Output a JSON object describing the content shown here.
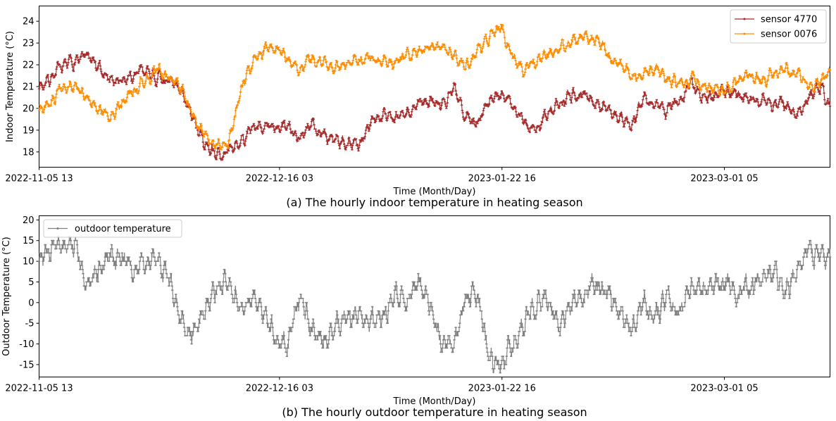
{
  "chart_data": [
    {
      "type": "line",
      "caption": "(a) The hourly indoor temperature in heating season",
      "xlabel": "Time (Month/Day)",
      "ylabel": "Indoor Temperature (°C)",
      "x_range_days": [
        0,
        133.5
      ],
      "x_ticks": [
        {
          "label": "2022-11-05 13",
          "day": 0
        },
        {
          "label": "2022-12-16 03",
          "day": 40.58
        },
        {
          "label": "2023-01-22 16",
          "day": 78.13
        },
        {
          "label": "2023-03-01 05",
          "day": 115.67
        }
      ],
      "ylim": [
        17.3,
        24.7
      ],
      "y_ticks": [
        18,
        19,
        20,
        21,
        22,
        23,
        24
      ],
      "legend_position": "upper-right",
      "series": [
        {
          "name": "sensor 4770",
          "color": "#a52a2a",
          "keyframes_day": [
            0,
            2,
            4,
            6,
            8,
            10,
            12,
            14,
            16,
            18,
            20,
            22,
            24,
            26,
            28,
            30,
            32,
            34,
            36,
            38,
            40,
            42,
            44,
            46,
            48,
            50,
            52,
            54,
            56,
            58,
            60,
            62,
            64,
            66,
            68,
            70,
            72,
            74,
            76,
            78,
            80,
            82,
            84,
            86,
            88,
            90,
            92,
            94,
            96,
            98,
            100,
            102,
            104,
            106,
            108,
            110,
            112,
            114,
            116,
            118,
            120,
            122,
            124,
            126,
            128,
            130,
            132,
            133.5
          ],
          "keyframes_temp": [
            21.0,
            21.4,
            21.9,
            22.2,
            22.4,
            21.8,
            21.4,
            21.2,
            21.5,
            21.8,
            21.4,
            21.1,
            20.9,
            19.5,
            18.3,
            17.9,
            18.0,
            18.5,
            19.0,
            19.2,
            19.1,
            19.1,
            18.7,
            19.2,
            18.9,
            18.6,
            18.4,
            18.3,
            19.4,
            19.8,
            19.6,
            19.7,
            20.2,
            20.4,
            20.3,
            20.9,
            19.6,
            19.4,
            20.4,
            20.8,
            20.1,
            19.3,
            18.9,
            19.9,
            20.2,
            20.5,
            20.7,
            20.3,
            20.0,
            19.6,
            19.2,
            20.5,
            20.2,
            20.0,
            20.3,
            21.2,
            20.4,
            20.6,
            20.8,
            20.6,
            20.5,
            20.4,
            20.2,
            20.1,
            19.8,
            20.5,
            21.0,
            20.1
          ],
          "noise_amplitude": 0.35
        },
        {
          "name": "sensor 0076",
          "color": "#ff8c00",
          "keyframes_day": [
            0,
            2,
            4,
            6,
            8,
            10,
            12,
            14,
            16,
            18,
            20,
            22,
            24,
            26,
            28,
            30,
            32,
            34,
            36,
            38,
            40,
            42,
            44,
            46,
            48,
            50,
            52,
            54,
            56,
            58,
            60,
            62,
            64,
            66,
            68,
            70,
            72,
            74,
            76,
            78,
            80,
            82,
            84,
            86,
            88,
            90,
            92,
            94,
            96,
            98,
            100,
            102,
            104,
            106,
            108,
            110,
            112,
            114,
            116,
            118,
            120,
            122,
            124,
            126,
            128,
            130,
            132,
            133.5
          ],
          "keyframes_temp": [
            19.9,
            20.3,
            21.0,
            21.0,
            20.5,
            20.1,
            19.6,
            20.3,
            20.8,
            21.4,
            21.7,
            21.3,
            21.0,
            19.6,
            18.8,
            18.3,
            18.4,
            20.8,
            22.1,
            22.7,
            22.8,
            22.3,
            21.9,
            22.2,
            22.0,
            21.9,
            22.1,
            22.2,
            22.3,
            22.2,
            22.0,
            22.4,
            22.6,
            22.7,
            22.8,
            22.4,
            22.0,
            22.6,
            23.3,
            23.7,
            22.4,
            21.6,
            22.2,
            22.5,
            22.8,
            23.0,
            23.3,
            23.1,
            22.6,
            22.0,
            21.4,
            21.6,
            21.9,
            21.4,
            21.2,
            21.3,
            21.0,
            21.0,
            20.8,
            21.3,
            21.5,
            21.3,
            21.6,
            21.8,
            21.6,
            21.0,
            21.3,
            21.7
          ],
          "noise_amplitude": 0.35
        }
      ]
    },
    {
      "type": "line",
      "caption": "(b) The hourly outdoor temperature in heating season",
      "xlabel": "Time (Month/Day)",
      "ylabel": "Outdoor Temperature (°C)",
      "x_range_days": [
        0,
        133.5
      ],
      "x_ticks": [
        {
          "label": "2022-11-05 13",
          "day": 0
        },
        {
          "label": "2022-12-16 03",
          "day": 40.58
        },
        {
          "label": "2023-01-22 16",
          "day": 78.13
        },
        {
          "label": "2023-03-01 05",
          "day": 115.67
        }
      ],
      "ylim": [
        -18,
        21
      ],
      "y_ticks": [
        -15,
        -10,
        -5,
        0,
        5,
        10,
        15,
        20
      ],
      "legend_position": "upper-left",
      "series": [
        {
          "name": "outdoor temperature",
          "color": "#808080",
          "keyframes_day": [
            0,
            2,
            4,
            6,
            8,
            10,
            12,
            14,
            16,
            18,
            20,
            22,
            24,
            26,
            28,
            30,
            32,
            34,
            36,
            38,
            40,
            42,
            44,
            46,
            48,
            50,
            52,
            54,
            56,
            58,
            60,
            62,
            64,
            66,
            68,
            70,
            72,
            74,
            76,
            78,
            80,
            82,
            84,
            86,
            88,
            90,
            92,
            94,
            96,
            98,
            100,
            102,
            104,
            106,
            108,
            110,
            112,
            114,
            116,
            118,
            120,
            122,
            124,
            126,
            128,
            130,
            132,
            133.5
          ],
          "keyframes_temp": [
            10,
            12,
            14,
            15,
            5,
            8,
            12,
            11,
            8,
            10,
            11,
            5,
            -5,
            -8,
            -2,
            3,
            5,
            -3,
            1,
            -2,
            -9,
            -10,
            2,
            -6,
            -10,
            -6,
            -4,
            -3,
            -5,
            -4,
            2,
            0,
            4,
            0,
            -10,
            -11,
            0,
            2,
            -13,
            -15,
            -10,
            -5,
            0,
            2,
            -5,
            0,
            2,
            3,
            2,
            -3,
            -6,
            1,
            -4,
            2,
            -2,
            4,
            4,
            3,
            6,
            2,
            4,
            6,
            8,
            3,
            8,
            14,
            12,
            11
          ],
          "noise_amplitude": 3.2
        }
      ]
    }
  ]
}
